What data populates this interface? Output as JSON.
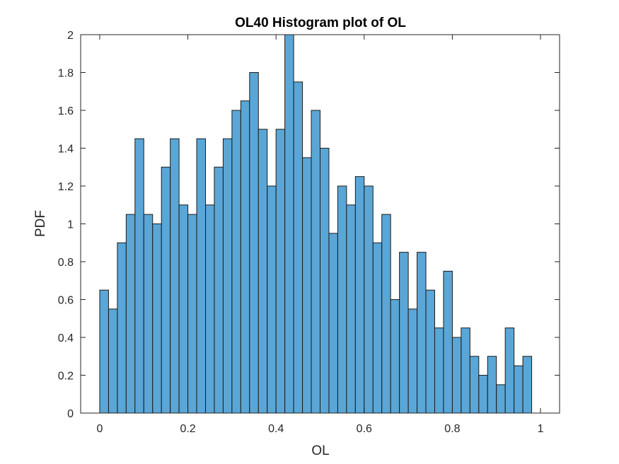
{
  "chart_data": {
    "type": "bar",
    "title": "OL40 Histogram plot of OL",
    "xlabel": "OL",
    "ylabel": "PDF",
    "xlim": [
      -0.0433,
      1.0433
    ],
    "ylim": [
      0,
      2
    ],
    "bin_width": 0.02,
    "x_ticks": [
      "0",
      "0.2",
      "0.4",
      "0.6",
      "0.8",
      "1"
    ],
    "x_tick_values": [
      0,
      0.2,
      0.4,
      0.6,
      0.8,
      1
    ],
    "y_ticks": [
      "0",
      "0.2",
      "0.4",
      "0.6",
      "0.8",
      "1",
      "1.2",
      "1.4",
      "1.6",
      "1.8",
      "2"
    ],
    "y_tick_values": [
      0,
      0.2,
      0.4,
      0.6,
      0.8,
      1,
      1.2,
      1.4,
      1.6,
      1.8,
      2
    ],
    "bin_edges_start": 0,
    "values": [
      0.65,
      0.55,
      0.9,
      1.05,
      1.45,
      1.05,
      1.0,
      1.3,
      1.45,
      1.1,
      1.05,
      1.45,
      1.1,
      1.3,
      1.45,
      1.6,
      1.65,
      1.8,
      1.5,
      1.2,
      1.5,
      2.0,
      1.75,
      1.35,
      1.6,
      1.4,
      0.95,
      1.2,
      1.1,
      1.25,
      1.2,
      0.9,
      1.05,
      0.6,
      0.85,
      0.55,
      0.85,
      0.65,
      0.45,
      0.75,
      0.4,
      0.45,
      0.3,
      0.2,
      0.3,
      0.15,
      0.45,
      0.25,
      0.3
    ],
    "bar_color": "#5aa6d6",
    "edge_color": "#1c1c1c",
    "grid": false
  }
}
